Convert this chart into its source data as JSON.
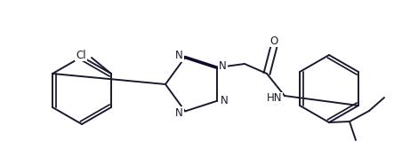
{
  "bg_color": "#ffffff",
  "bond_color": "#1a1a2e",
  "atom_color": "#1a1a2e",
  "line_width": 1.4,
  "font_size": 8.5,
  "fig_width": 4.43,
  "fig_height": 1.77,
  "dpi": 100,
  "xlim": [
    0,
    443
  ],
  "ylim": [
    0,
    177
  ]
}
